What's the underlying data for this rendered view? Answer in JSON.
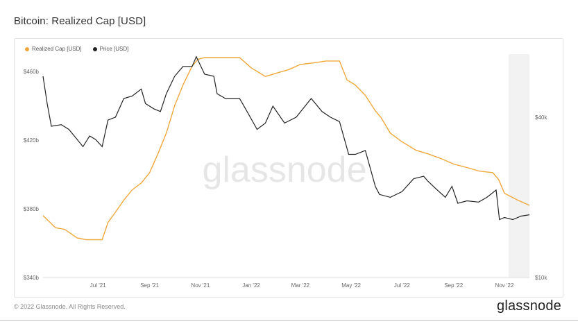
{
  "header": {
    "title": "Bitcoin: Realized Cap [USD]"
  },
  "footer": {
    "copyright": "© 2022 Glassnode. All Rights Reserved.",
    "brand": "glassnode"
  },
  "watermark": "glassnode",
  "colors": {
    "realized": "#f0a73a",
    "price": "#222222",
    "shade": "#f2f2f2"
  },
  "chart_data": {
    "type": "line",
    "legend_placement": "top-left",
    "grid": false,
    "x_axis": {
      "ticks": [
        "Jul '21",
        "Sep '21",
        "Nov '21",
        "Jan '22",
        "Mar '22",
        "May '22",
        "Jul '22",
        "Sep '22",
        "Nov '22"
      ],
      "range": [
        "2021-05-10",
        "2022-12-15"
      ]
    },
    "y_left": {
      "ticks": [
        "$340b",
        "$380b",
        "$420b",
        "$460b"
      ],
      "range": [
        340,
        470
      ]
    },
    "y_right": {
      "ticks": [
        "$10k",
        "$40k"
      ],
      "scale": "log",
      "range": [
        10000,
        69000
      ]
    },
    "series": [
      {
        "name": "Realized Cap [USD]",
        "axis": "left",
        "unit": "billion USD",
        "x": [
          "2021-05-10",
          "2021-05-25",
          "2021-06-05",
          "2021-06-20",
          "2021-07-01",
          "2021-07-10",
          "2021-07-20",
          "2021-07-27",
          "2021-08-05",
          "2021-08-15",
          "2021-08-25",
          "2021-09-05",
          "2021-09-15",
          "2021-09-25",
          "2021-10-05",
          "2021-10-15",
          "2021-10-25",
          "2021-11-05",
          "2021-11-12",
          "2021-11-20",
          "2021-12-01",
          "2021-12-15",
          "2022-01-01",
          "2022-01-15",
          "2022-02-01",
          "2022-02-15",
          "2022-03-01",
          "2022-03-15",
          "2022-04-01",
          "2022-04-15",
          "2022-05-01",
          "2022-05-10",
          "2022-05-20",
          "2022-06-01",
          "2022-06-13",
          "2022-06-20",
          "2022-07-01",
          "2022-07-15",
          "2022-08-01",
          "2022-08-15",
          "2022-09-01",
          "2022-09-15",
          "2022-10-01",
          "2022-10-15",
          "2022-11-01",
          "2022-11-08",
          "2022-11-15",
          "2022-12-01",
          "2022-12-15"
        ],
        "y": [
          376,
          369,
          368,
          363,
          362,
          362,
          362,
          372,
          378,
          385,
          391,
          395,
          401,
          412,
          424,
          440,
          452,
          463,
          467,
          468,
          468,
          468,
          468,
          462,
          457,
          459,
          461,
          464,
          465,
          466,
          466,
          455,
          452,
          446,
          437,
          433,
          424,
          419,
          414,
          412,
          409,
          406,
          404,
          402,
          401,
          397,
          389,
          385,
          382
        ]
      },
      {
        "name": "Price [USD]",
        "axis": "right",
        "unit": "USD",
        "x": [
          "2021-05-10",
          "2021-05-15",
          "2021-05-20",
          "2021-06-01",
          "2021-06-10",
          "2021-06-20",
          "2021-06-27",
          "2021-07-05",
          "2021-07-12",
          "2021-07-20",
          "2021-07-27",
          "2021-08-05",
          "2021-08-15",
          "2021-08-25",
          "2021-09-05",
          "2021-09-10",
          "2021-09-20",
          "2021-09-28",
          "2021-10-05",
          "2021-10-15",
          "2021-10-25",
          "2021-11-05",
          "2021-11-10",
          "2021-11-20",
          "2021-12-01",
          "2021-12-05",
          "2021-12-15",
          "2022-01-01",
          "2022-01-10",
          "2022-01-22",
          "2022-02-01",
          "2022-02-10",
          "2022-02-24",
          "2022-03-10",
          "2022-03-28",
          "2022-04-10",
          "2022-04-20",
          "2022-05-01",
          "2022-05-12",
          "2022-05-20",
          "2022-06-01",
          "2022-06-13",
          "2022-06-18",
          "2022-07-01",
          "2022-07-15",
          "2022-07-29",
          "2022-08-10",
          "2022-08-15",
          "2022-08-25",
          "2022-09-05",
          "2022-09-13",
          "2022-09-20",
          "2022-10-01",
          "2022-10-15",
          "2022-10-25",
          "2022-11-05",
          "2022-11-09",
          "2022-11-15",
          "2022-11-25",
          "2022-12-05",
          "2022-12-15"
        ],
        "y": [
          57000,
          45000,
          37000,
          37500,
          36000,
          33000,
          31000,
          34000,
          33000,
          31000,
          39000,
          40000,
          47000,
          48000,
          51000,
          45000,
          43000,
          42000,
          49000,
          57000,
          62000,
          62000,
          67500,
          58000,
          57000,
          49000,
          47000,
          47000,
          42000,
          36000,
          38000,
          44000,
          38000,
          40000,
          47000,
          42000,
          40000,
          38500,
          29000,
          29000,
          30000,
          22000,
          20500,
          20000,
          21000,
          23500,
          24000,
          23000,
          21500,
          20000,
          22000,
          19000,
          19400,
          19200,
          20000,
          21300,
          16500,
          16800,
          16500,
          17000,
          17200
        ]
      }
    ]
  }
}
